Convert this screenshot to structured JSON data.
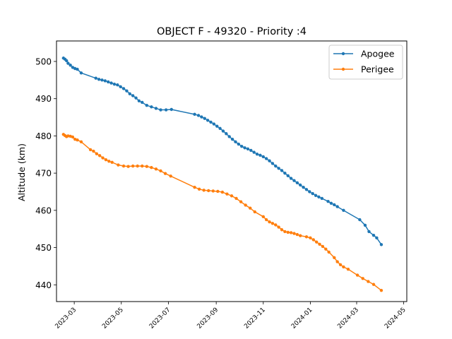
{
  "chart_data": {
    "type": "line",
    "title": "OBJECT F - 49320 - Priority :4",
    "xlabel": "",
    "ylabel": "Altitude (km)",
    "x_type": "date",
    "xlim": [
      "2023-02-06",
      "2024-05-05"
    ],
    "ylim": [
      435.5,
      505.5
    ],
    "xticks": [
      "2023-03",
      "2023-05",
      "2023-07",
      "2023-09",
      "2023-11",
      "2024-01",
      "2024-03",
      "2024-05"
    ],
    "yticks": [
      440,
      450,
      460,
      470,
      480,
      490,
      500
    ],
    "grid": false,
    "legend_position": "top-right",
    "series": [
      {
        "name": "Apogee",
        "color": "#1f77b4",
        "marker": "circle",
        "points": [
          [
            "2023-02-15",
            500.9
          ],
          [
            "2023-02-17",
            500.6
          ],
          [
            "2023-02-19",
            500.2
          ],
          [
            "2023-02-21",
            499.5
          ],
          [
            "2023-02-24",
            499.0
          ],
          [
            "2023-02-27",
            498.4
          ],
          [
            "2023-03-02",
            498.1
          ],
          [
            "2023-03-05",
            497.9
          ],
          [
            "2023-03-10",
            496.9
          ],
          [
            "2023-03-29",
            495.5
          ],
          [
            "2023-04-02",
            495.2
          ],
          [
            "2023-04-06",
            495.0
          ],
          [
            "2023-04-10",
            494.8
          ],
          [
            "2023-04-14",
            494.5
          ],
          [
            "2023-04-18",
            494.2
          ],
          [
            "2023-04-22",
            493.9
          ],
          [
            "2023-04-26",
            493.7
          ],
          [
            "2023-04-30",
            493.2
          ],
          [
            "2023-05-04",
            492.7
          ],
          [
            "2023-05-08",
            492.1
          ],
          [
            "2023-05-12",
            491.3
          ],
          [
            "2023-05-16",
            490.8
          ],
          [
            "2023-05-20",
            490.2
          ],
          [
            "2023-05-24",
            489.4
          ],
          [
            "2023-05-28",
            489.0
          ],
          [
            "2023-06-03",
            488.2
          ],
          [
            "2023-06-09",
            487.8
          ],
          [
            "2023-06-15",
            487.4
          ],
          [
            "2023-06-21",
            487.0
          ],
          [
            "2023-06-28",
            487.0
          ],
          [
            "2023-07-05",
            487.1
          ],
          [
            "2023-08-04",
            485.8
          ],
          [
            "2023-08-09",
            485.5
          ],
          [
            "2023-08-13",
            485.1
          ],
          [
            "2023-08-17",
            484.7
          ],
          [
            "2023-08-21",
            484.2
          ],
          [
            "2023-08-25",
            483.7
          ],
          [
            "2023-08-29",
            483.2
          ],
          [
            "2023-09-02",
            482.6
          ],
          [
            "2023-09-06",
            482.0
          ],
          [
            "2023-09-10",
            481.3
          ],
          [
            "2023-09-14",
            480.6
          ],
          [
            "2023-09-18",
            479.8
          ],
          [
            "2023-09-22",
            479.1
          ],
          [
            "2023-09-26",
            478.4
          ],
          [
            "2023-09-30",
            477.8
          ],
          [
            "2023-10-04",
            477.2
          ],
          [
            "2023-10-08",
            476.8
          ],
          [
            "2023-10-12",
            476.5
          ],
          [
            "2023-10-16",
            476.1
          ],
          [
            "2023-10-20",
            475.6
          ],
          [
            "2023-10-24",
            475.1
          ],
          [
            "2023-10-28",
            474.8
          ],
          [
            "2023-11-01",
            474.4
          ],
          [
            "2023-11-05",
            473.9
          ],
          [
            "2023-11-09",
            473.3
          ],
          [
            "2023-11-13",
            472.6
          ],
          [
            "2023-11-17",
            471.9
          ],
          [
            "2023-11-21",
            471.3
          ],
          [
            "2023-11-25",
            470.7
          ],
          [
            "2023-11-29",
            470.0
          ],
          [
            "2023-12-03",
            469.3
          ],
          [
            "2023-12-07",
            468.6
          ],
          [
            "2023-12-11",
            468.0
          ],
          [
            "2023-12-15",
            467.4
          ],
          [
            "2023-12-19",
            466.8
          ],
          [
            "2023-12-23",
            466.2
          ],
          [
            "2023-12-27",
            465.6
          ],
          [
            "2023-12-31",
            465.0
          ],
          [
            "2024-01-04",
            464.5
          ],
          [
            "2024-01-08",
            464.0
          ],
          [
            "2024-01-12",
            463.6
          ],
          [
            "2024-01-16",
            463.2
          ],
          [
            "2024-01-24",
            462.4
          ],
          [
            "2024-01-28",
            461.9
          ],
          [
            "2024-02-01",
            461.5
          ],
          [
            "2024-02-05",
            461.0
          ],
          [
            "2024-02-13",
            460.0
          ],
          [
            "2024-03-05",
            457.5
          ],
          [
            "2024-03-12",
            456.0
          ],
          [
            "2024-03-17",
            454.3
          ],
          [
            "2024-03-23",
            453.3
          ],
          [
            "2024-03-27",
            452.6
          ],
          [
            "2024-04-02",
            450.8
          ]
        ]
      },
      {
        "name": "Perigee",
        "color": "#ff7f0e",
        "marker": "circle",
        "points": [
          [
            "2023-02-15",
            480.4
          ],
          [
            "2023-02-17",
            480.1
          ],
          [
            "2023-02-19",
            479.8
          ],
          [
            "2023-02-21",
            480.0
          ],
          [
            "2023-02-24",
            479.9
          ],
          [
            "2023-02-27",
            479.7
          ],
          [
            "2023-03-02",
            479.1
          ],
          [
            "2023-03-05",
            478.9
          ],
          [
            "2023-03-10",
            478.4
          ],
          [
            "2023-03-22",
            476.3
          ],
          [
            "2023-03-26",
            475.9
          ],
          [
            "2023-03-30",
            475.2
          ],
          [
            "2023-04-03",
            474.7
          ],
          [
            "2023-04-07",
            474.1
          ],
          [
            "2023-04-11",
            473.6
          ],
          [
            "2023-04-15",
            473.2
          ],
          [
            "2023-04-19",
            472.9
          ],
          [
            "2023-04-27",
            472.2
          ],
          [
            "2023-05-04",
            471.9
          ],
          [
            "2023-05-10",
            471.8
          ],
          [
            "2023-05-16",
            471.9
          ],
          [
            "2023-05-22",
            471.9
          ],
          [
            "2023-05-28",
            471.9
          ],
          [
            "2023-06-03",
            471.8
          ],
          [
            "2023-06-09",
            471.5
          ],
          [
            "2023-06-15",
            471.1
          ],
          [
            "2023-06-21",
            470.6
          ],
          [
            "2023-06-27",
            469.9
          ],
          [
            "2023-07-04",
            469.2
          ],
          [
            "2023-08-04",
            466.2
          ],
          [
            "2023-08-10",
            465.7
          ],
          [
            "2023-08-16",
            465.4
          ],
          [
            "2023-08-22",
            465.3
          ],
          [
            "2023-08-28",
            465.2
          ],
          [
            "2023-09-03",
            465.1
          ],
          [
            "2023-09-09",
            464.9
          ],
          [
            "2023-09-15",
            464.4
          ],
          [
            "2023-09-21",
            463.9
          ],
          [
            "2023-09-27",
            463.2
          ],
          [
            "2023-10-03",
            462.3
          ],
          [
            "2023-10-09",
            461.4
          ],
          [
            "2023-10-15",
            460.6
          ],
          [
            "2023-10-21",
            459.6
          ],
          [
            "2023-11-01",
            458.3
          ],
          [
            "2023-11-05",
            457.5
          ],
          [
            "2023-11-09",
            456.9
          ],
          [
            "2023-11-13",
            456.5
          ],
          [
            "2023-11-17",
            456.1
          ],
          [
            "2023-11-21",
            455.5
          ],
          [
            "2023-11-25",
            454.8
          ],
          [
            "2023-11-29",
            454.3
          ],
          [
            "2023-12-03",
            454.1
          ],
          [
            "2023-12-07",
            454.0
          ],
          [
            "2023-12-11",
            453.8
          ],
          [
            "2023-12-15",
            453.5
          ],
          [
            "2023-12-19",
            453.2
          ],
          [
            "2023-12-27",
            452.9
          ],
          [
            "2024-01-01",
            452.6
          ],
          [
            "2024-01-05",
            452.1
          ],
          [
            "2024-01-09",
            451.5
          ],
          [
            "2024-01-13",
            450.9
          ],
          [
            "2024-01-17",
            450.3
          ],
          [
            "2024-01-21",
            449.6
          ],
          [
            "2024-01-25",
            448.8
          ],
          [
            "2024-02-01",
            447.3
          ],
          [
            "2024-02-05",
            446.2
          ],
          [
            "2024-02-09",
            445.4
          ],
          [
            "2024-02-13",
            444.8
          ],
          [
            "2024-02-19",
            444.2
          ],
          [
            "2024-03-02",
            442.6
          ],
          [
            "2024-03-09",
            441.7
          ],
          [
            "2024-03-16",
            440.9
          ],
          [
            "2024-03-23",
            440.1
          ],
          [
            "2024-04-02",
            438.5
          ]
        ]
      }
    ]
  }
}
